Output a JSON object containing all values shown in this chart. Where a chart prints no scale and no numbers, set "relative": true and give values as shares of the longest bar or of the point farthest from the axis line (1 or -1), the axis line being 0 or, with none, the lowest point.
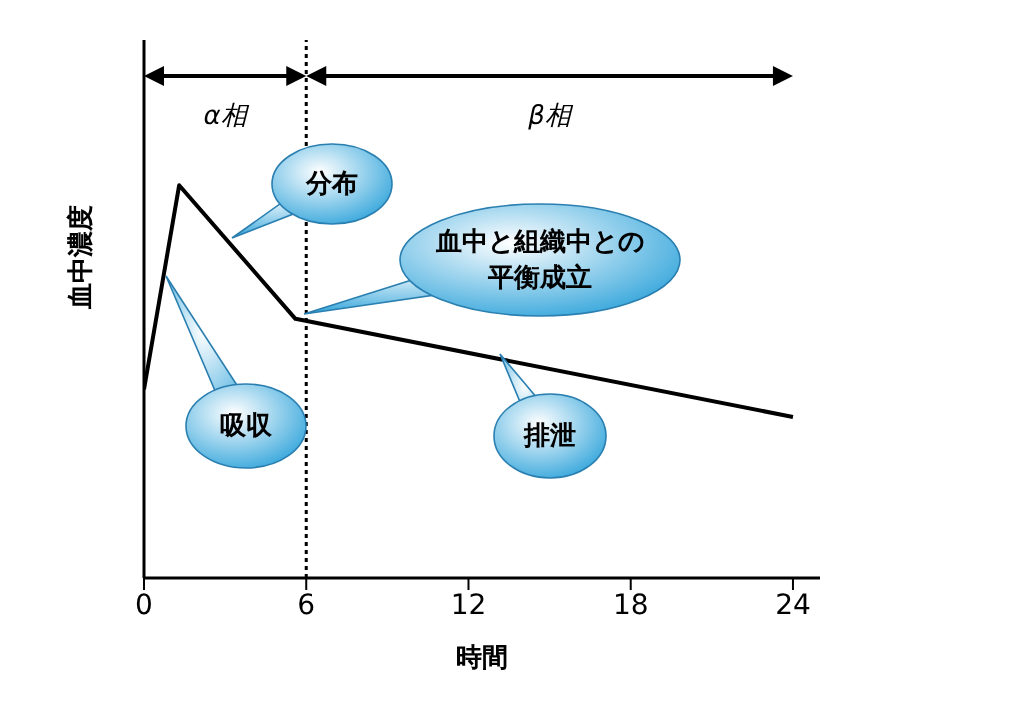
{
  "chart_data": {
    "type": "line",
    "xlabel": "時間",
    "ylabel": "血中濃度",
    "relative": true,
    "series": [
      {
        "color": "#000000",
        "x": [
          0,
          1.3,
          5.6,
          24
        ],
        "values": [
          0.48,
          1,
          0.66,
          0.41
        ]
      }
    ],
    "xlim": [
      0,
      25
    ],
    "xticks": [
      0,
      6,
      12,
      18,
      24
    ],
    "grid": false,
    "legend": false,
    "marker": "none",
    "line_style": "solid",
    "ref_lines": [
      {
        "axis": "x",
        "value": 6,
        "line_style": "dotted",
        "color": "#000000"
      }
    ],
    "annotations": [
      "α相",
      "β相",
      "分布",
      "吸収",
      "血中と組織中との平衡成立",
      "排泄"
    ]
  }
}
